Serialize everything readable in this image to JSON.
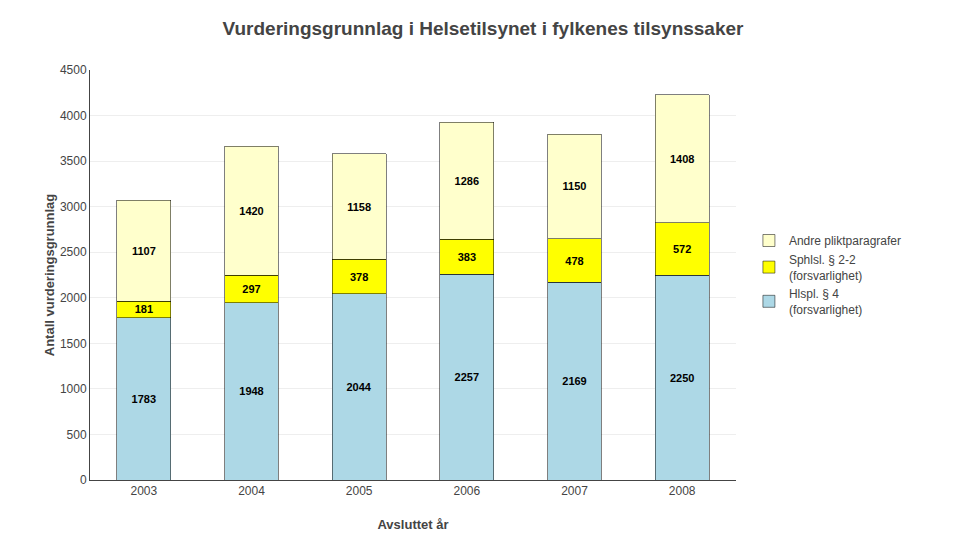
{
  "chart_data": {
    "type": "bar",
    "title": "Vurderingsgrunnlag i Helsetilsynet i fylkenes tilsynssaker",
    "x_label": "Avsluttet år",
    "y_label": "Antall vurderingsgrunnlag",
    "categories": [
      "2003",
      "2004",
      "2005",
      "2006",
      "2007",
      "2008"
    ],
    "series": [
      {
        "name": "Hlspl. § 4\n(forsvarlighet)",
        "color": "#ADD8E6",
        "values": [
          1783,
          1948,
          2044,
          2257,
          2169,
          2250
        ]
      },
      {
        "name": "Sphlsl. § 2-2\n(forsvarlighet)",
        "color": "#FFFF00",
        "values": [
          181,
          297,
          378,
          383,
          478,
          572
        ]
      },
      {
        "name": "Andre pliktparagrafer",
        "color": "#FFFFCC",
        "values": [
          1107,
          1420,
          1158,
          1286,
          1150,
          1408
        ]
      }
    ],
    "stacked": true,
    "data_labels": true,
    "grid": true,
    "legend": "right",
    "ylim": [
      0,
      4500
    ],
    "yticks": [
      0,
      500,
      1000,
      1500,
      2000,
      2500,
      3000,
      3500,
      4000,
      4500
    ]
  }
}
